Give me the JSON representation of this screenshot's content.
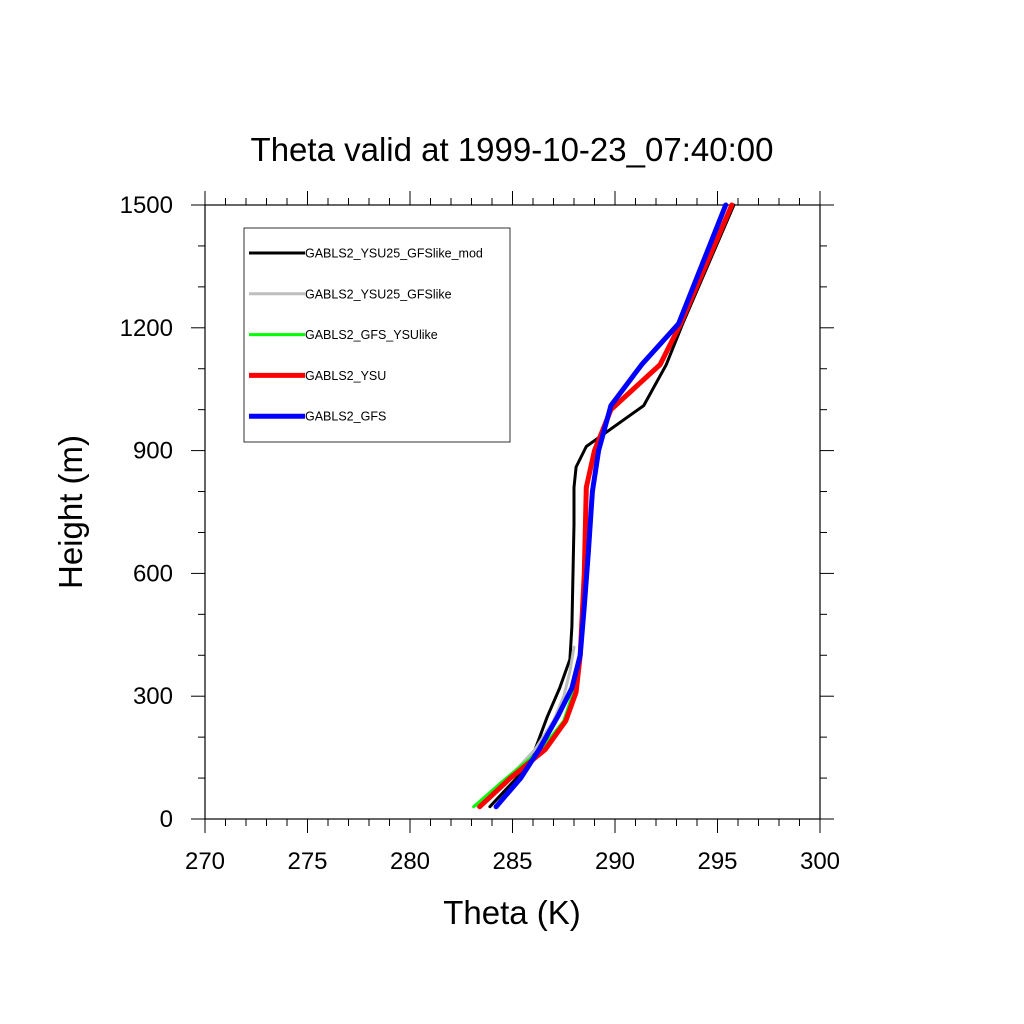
{
  "chart_data": {
    "type": "line",
    "title": "Theta valid at 1999-10-23_07:40:00",
    "xlabel": "Theta (K)",
    "ylabel": "Height (m)",
    "xlim": [
      270,
      300
    ],
    "ylim": [
      0,
      1500
    ],
    "xticks": [
      "270",
      "275",
      "280",
      "285",
      "290",
      "295",
      "300"
    ],
    "yticks": [
      "0",
      "300",
      "600",
      "900",
      "1200",
      "1500"
    ],
    "legend_position": "top-left",
    "grid": false,
    "series": [
      {
        "name": "GABLS2_YSU25_GFSlike_mod",
        "color": "#000000",
        "x": [
          283.9,
          285.2,
          286.1,
          286.7,
          287.3,
          287.8,
          287.9,
          288.0,
          288.0,
          288.1,
          288.6,
          291.4,
          292.5,
          293.3,
          295.8
        ],
        "y": [
          30,
          100,
          170,
          250,
          320,
          390,
          470,
          720,
          810,
          860,
          910,
          1010,
          1110,
          1210,
          1500
        ],
        "width": 3
      },
      {
        "name": "GABLS2_YSU25_GFSlike",
        "color": "#bebebe",
        "x": [
          283.3,
          284.8,
          286.1,
          287.0,
          287.5,
          287.8,
          288.0
        ],
        "y": [
          30,
          100,
          170,
          240,
          300,
          360,
          420
        ],
        "width": 3
      },
      {
        "name": "GABLS2_GFS_YSUlike",
        "color": "#00ff00",
        "x": [
          283.1,
          284.7,
          286.4,
          287.5,
          287.9,
          288.1
        ],
        "y": [
          30,
          100,
          170,
          240,
          300,
          360
        ],
        "width": 3
      },
      {
        "name": "GABLS2_YSU",
        "color": "#ff0000",
        "x": [
          283.4,
          284.9,
          286.6,
          287.6,
          288.1,
          288.3,
          288.5,
          288.6,
          289.0,
          289.8,
          292.2,
          293.2,
          295.7
        ],
        "y": [
          30,
          100,
          170,
          240,
          310,
          400,
          600,
          810,
          900,
          1000,
          1110,
          1210,
          1500
        ],
        "width": 5
      },
      {
        "name": "GABLS2_GFS",
        "color": "#0000ff",
        "x": [
          284.2,
          285.4,
          286.3,
          287.2,
          287.9,
          288.3,
          288.5,
          288.7,
          288.9,
          289.2,
          289.8,
          291.3,
          293.1,
          295.4
        ],
        "y": [
          30,
          100,
          170,
          250,
          320,
          400,
          520,
          650,
          800,
          900,
          1010,
          1110,
          1210,
          1500
        ],
        "width": 5
      }
    ]
  }
}
